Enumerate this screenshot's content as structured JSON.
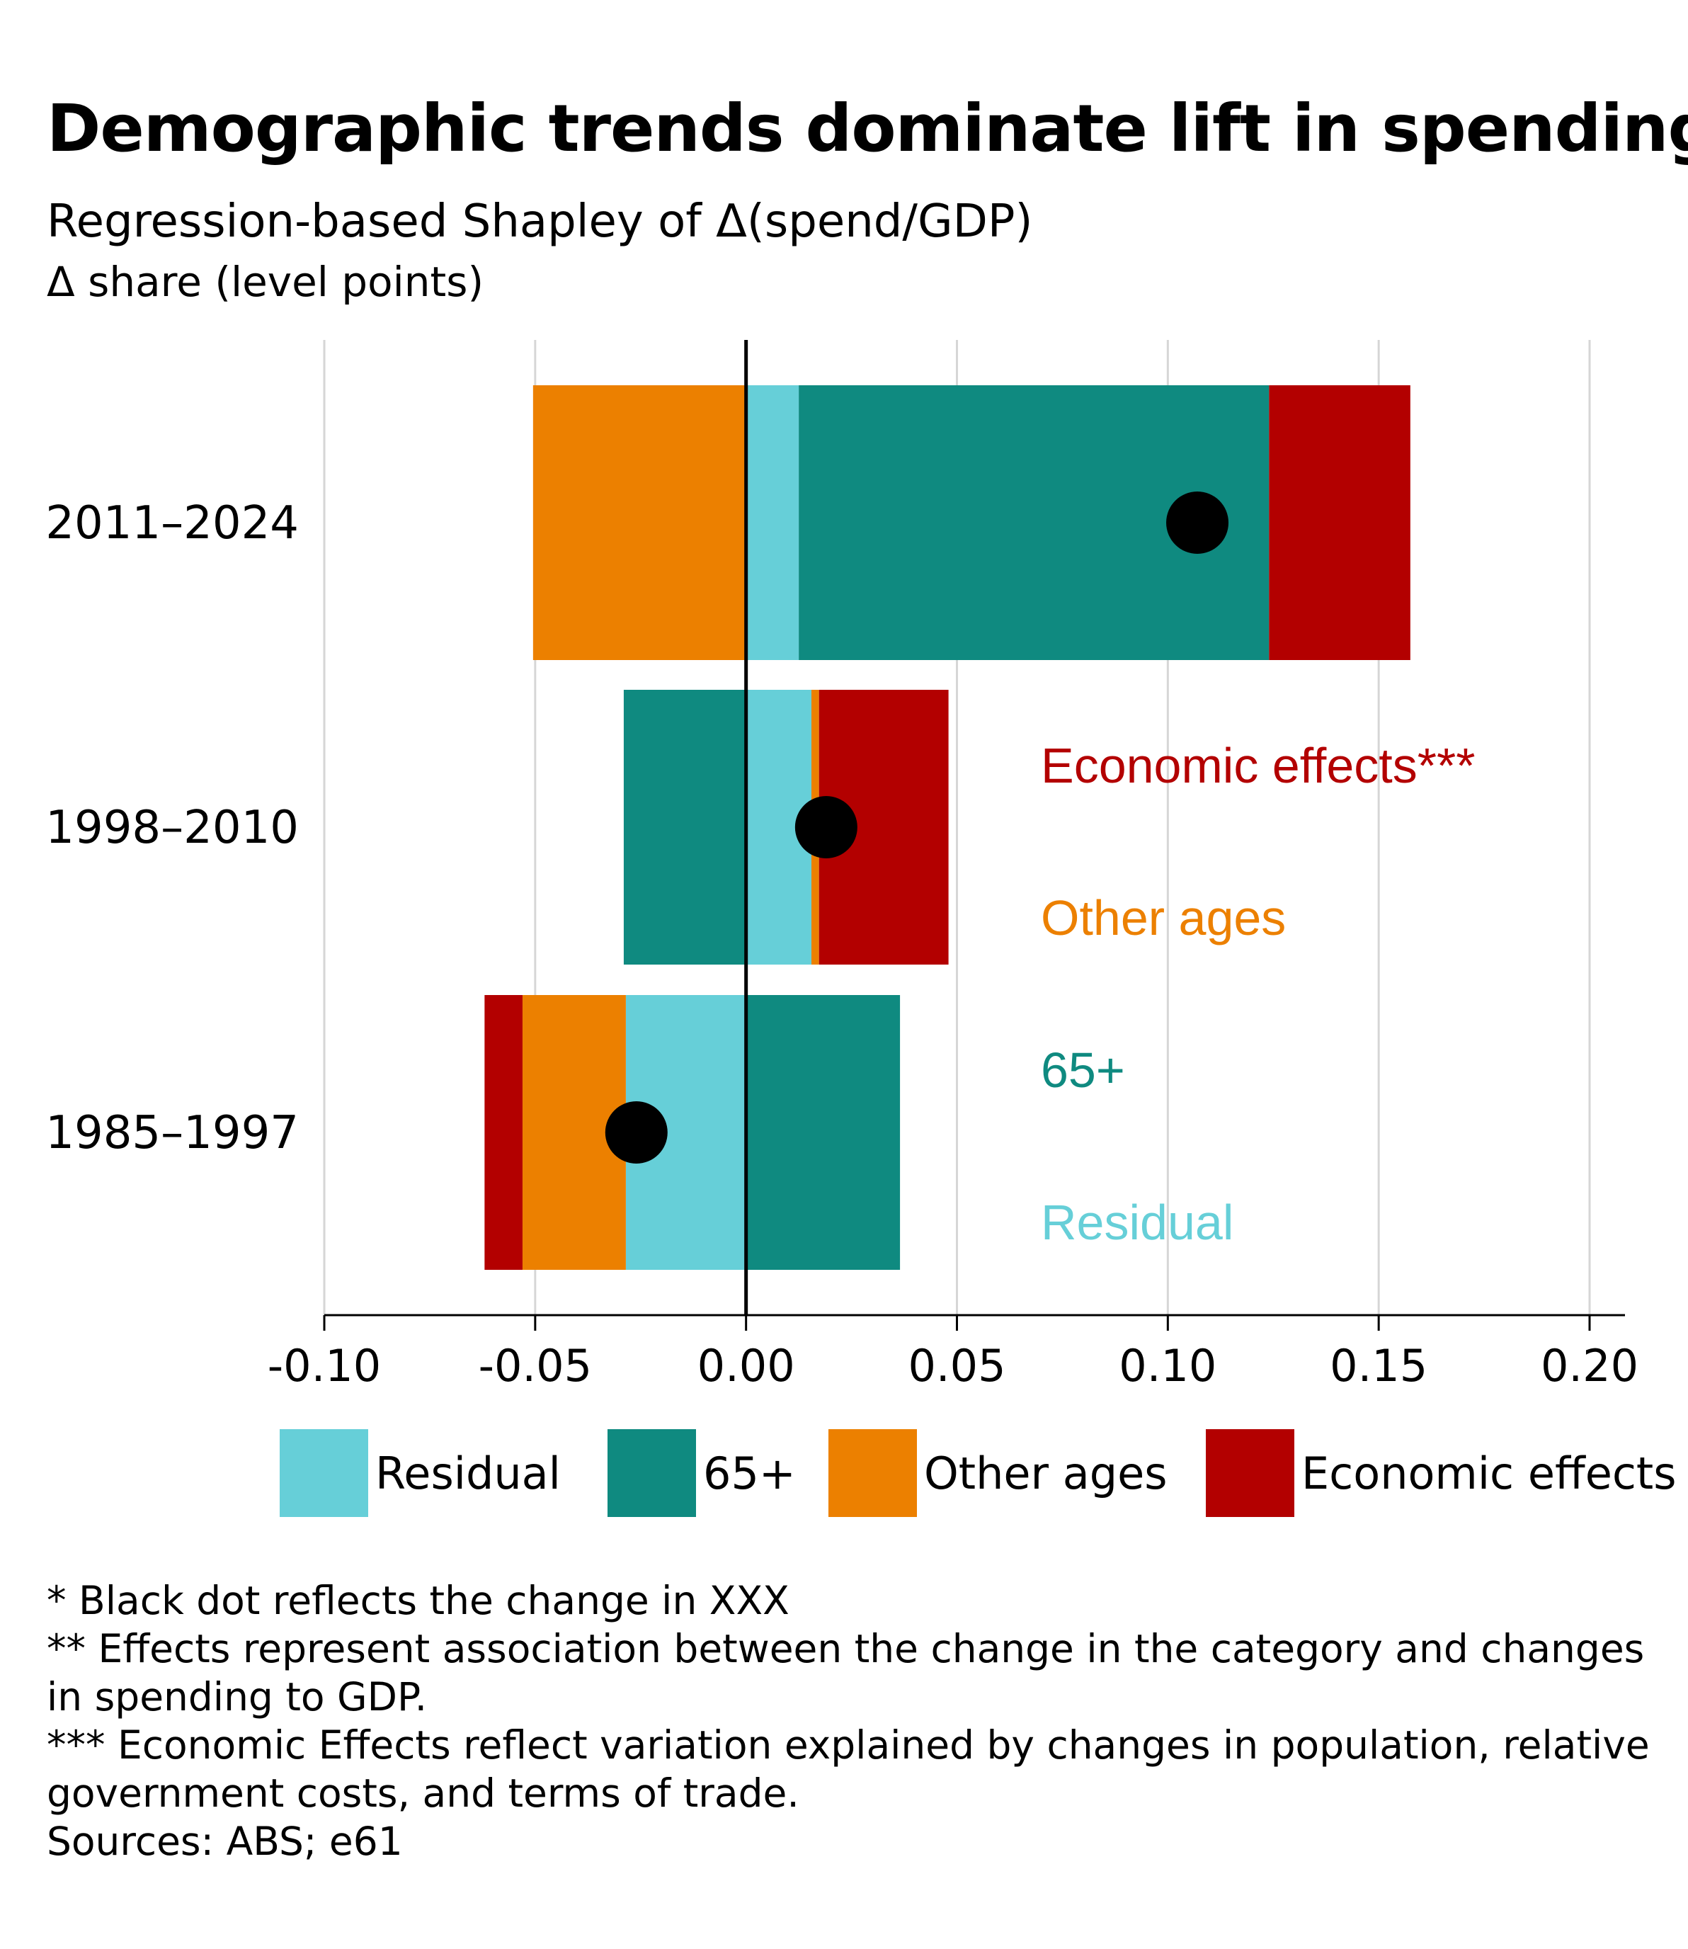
{
  "title": "Demographic trends dominate lift in spending",
  "subtitle": "Regression-based Shapley of Δ(spend/GDP)",
  "units": "Δ share (level points)",
  "colors": {
    "residual": "#66CFD8",
    "age65": "#0F8A80",
    "other_ages": "#EC8000",
    "economic": "#B30000",
    "dot": "#000000"
  },
  "chart_data": {
    "type": "bar",
    "orientation": "horizontal",
    "stacked": true,
    "categories": [
      "2011–2024",
      "1998–2010",
      "1985–1997"
    ],
    "series": [
      {
        "key": "residual",
        "name": "Residual",
        "values": [
          0.0125,
          0.0155,
          -0.0285
        ]
      },
      {
        "key": "age65",
        "name": "65+",
        "values": [
          0.1115,
          -0.029,
          0.0365
        ]
      },
      {
        "key": "other_ages",
        "name": "Other ages",
        "values": [
          -0.0505,
          0.0018,
          -0.0245
        ]
      },
      {
        "key": "economic",
        "name": "Economic effects",
        "values": [
          0.0335,
          0.0307,
          -0.009
        ]
      }
    ],
    "totals": [
      0.107,
      0.019,
      -0.026
    ],
    "xlim": [
      -0.1,
      0.2
    ],
    "xticks": [
      "-0.10",
      "-0.05",
      "0.00",
      "0.05",
      "0.10",
      "0.15",
      "0.20"
    ],
    "xtick_values": [
      -0.1,
      -0.05,
      0,
      0.05,
      0.1,
      0.15,
      0.2
    ],
    "grid": "vertical",
    "annotations": [
      {
        "key": "economic",
        "text": "Economic effects***"
      },
      {
        "key": "other_ages",
        "text": "Other ages"
      },
      {
        "key": "age65",
        "text": "65+"
      },
      {
        "key": "residual",
        "text": "Residual"
      }
    ],
    "legend": [
      {
        "key": "residual",
        "label": "Residual"
      },
      {
        "key": "age65",
        "label": "65+"
      },
      {
        "key": "other_ages",
        "label": "Other ages"
      },
      {
        "key": "economic",
        "label": "Economic effects"
      }
    ]
  },
  "notes": [
    "* Black dot reflects the change in XXX",
    "** Effects represent association between the change in the category and changes in spending to GDP.",
    "*** Economic Effects reflect variation explained by changes in population, relative government costs, and terms of trade.",
    "Sources: ABS; e61"
  ]
}
